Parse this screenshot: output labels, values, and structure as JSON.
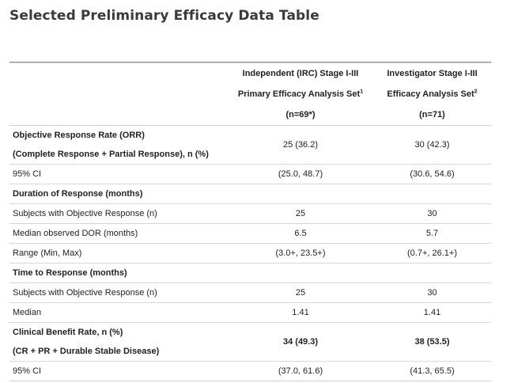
{
  "title": "Selected Preliminary Efficacy Data Table",
  "header": {
    "col1": {
      "line1": "Independent (IRC) Stage I-III",
      "line2": "Primary Efficacy Analysis Set",
      "sup": "1",
      "line3": "(n=69*)"
    },
    "col2": {
      "line1": "Investigator Stage I-III",
      "line2": "Efficacy Analysis Set",
      "sup": "2",
      "line3": "(n=71)"
    }
  },
  "rows": [
    {
      "label1": "Objective Response Rate (ORR)",
      "label2": "(Complete Response + Partial Response), n (%)",
      "v1": "25 (36.2)",
      "v2": "30 (42.3)"
    },
    {
      "label": "95% CI",
      "v1": "(25.0, 48.7)",
      "v2": "(30.6, 54.6)"
    },
    {
      "label": "Duration of Response (months)"
    },
    {
      "label": "Subjects with Objective Response (n)",
      "v1": "25",
      "v2": "30"
    },
    {
      "label": "Median observed DOR (months)",
      "v1": "6.5",
      "v2": "5.7"
    },
    {
      "label": "Range (Min, Max)",
      "v1": "(3.0+, 23.5+)",
      "v2": "(0.7+, 26.1+)"
    },
    {
      "label": "Time to Response (months)"
    },
    {
      "label": "Subjects with Objective Response (n)",
      "v1": "25",
      "v2": "30"
    },
    {
      "label": "Median",
      "v1": "1.41",
      "v2": "1.41"
    },
    {
      "label1": "Clinical Benefit Rate, n (%)",
      "label2": "(CR + PR + Durable Stable Disease)",
      "v1": "34 (49.3)",
      "v2": "38 (53.5)"
    },
    {
      "label": "95% CI",
      "v1": "(37.0, 61.6)",
      "v2": "(41.3, 65.5)"
    }
  ]
}
